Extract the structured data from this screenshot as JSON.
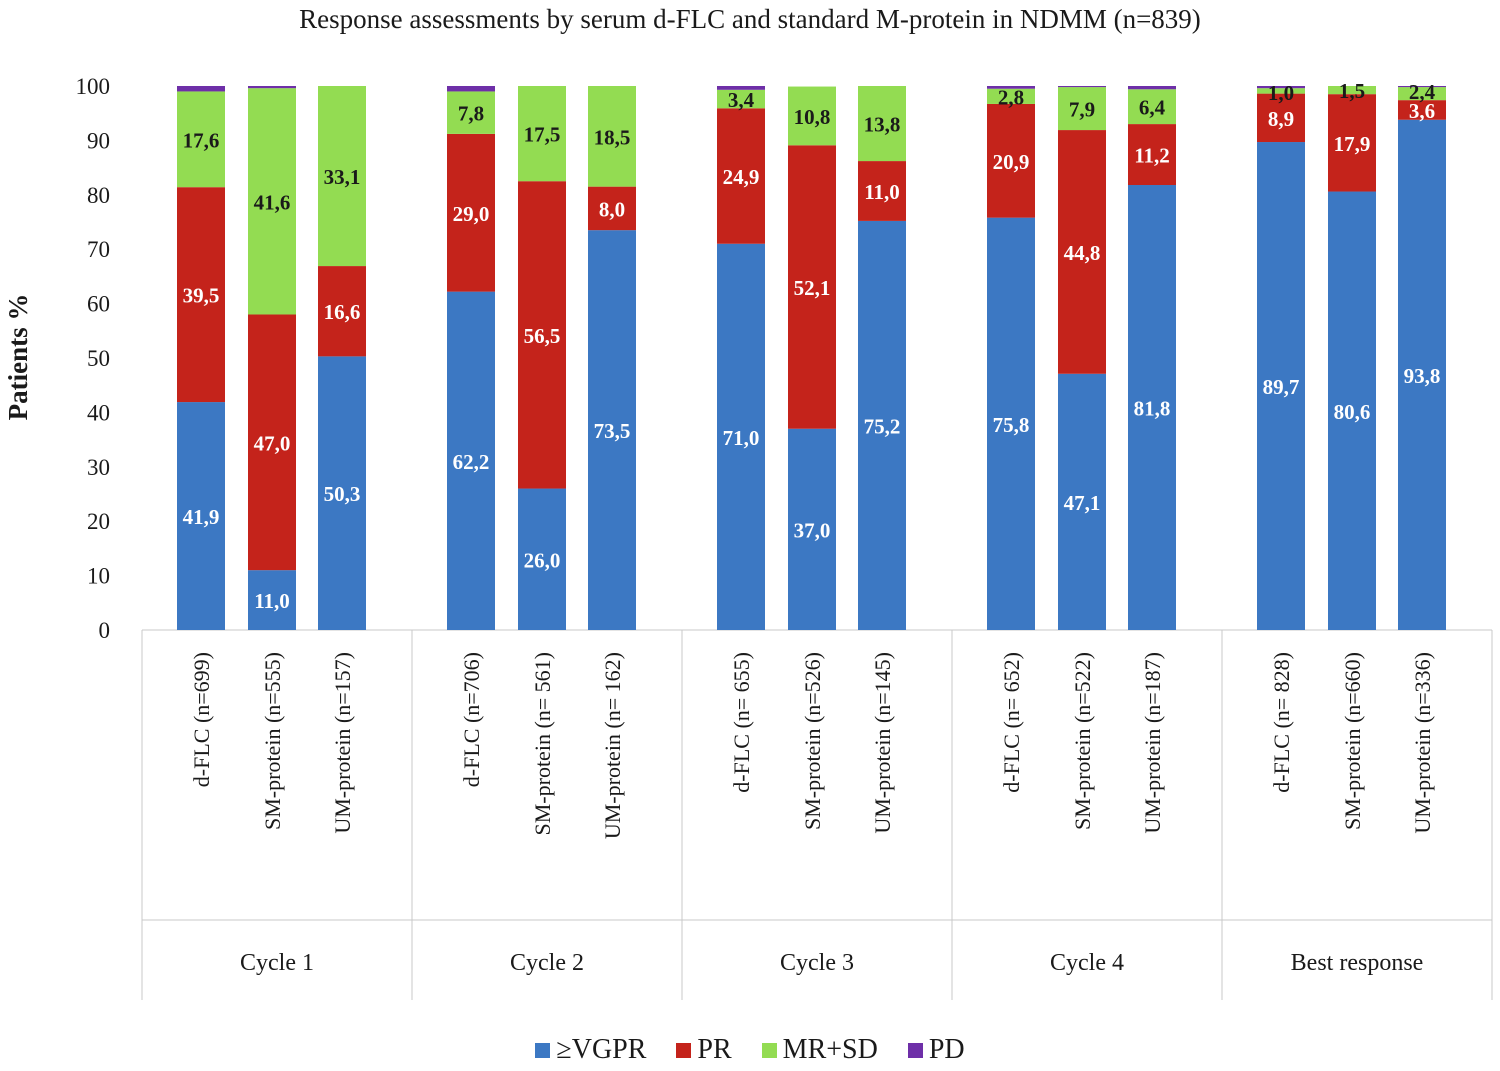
{
  "chart_data": {
    "type": "bar",
    "stacked": true,
    "title": "Response assessments by serum d-FLC and standard M-protein in NDMM (n=839)",
    "ylabel": "Patients %",
    "ylim": [
      0,
      100
    ],
    "yticks": [
      0,
      10,
      20,
      30,
      40,
      50,
      60,
      70,
      80,
      90,
      100
    ],
    "grid": false,
    "legend_position": "bottom",
    "groups": [
      "Cycle 1",
      "Cycle 2",
      "Cycle 3",
      "Cycle 4",
      "Best response"
    ],
    "categories": [
      "d-FLC (n=699)",
      "SM-protein (n=555)",
      "UM-protein (n=157)",
      "d-FLC (n=706)",
      "SM-protein (n= 561)",
      "UM-protein (n= 162)",
      "d-FLC (n= 655)",
      "SM-protein (n=526)",
      "UM-protein (n=145)",
      "d-FLC (n= 652)",
      "SM-protein (n=522)",
      "UM-protein (n=187)",
      "d-FLC (n= 828)",
      "SM-protein (n=660)",
      "UM-protein (n=336)"
    ],
    "group_index": [
      0,
      0,
      0,
      1,
      1,
      1,
      2,
      2,
      2,
      3,
      3,
      3,
      4,
      4,
      4
    ],
    "series": [
      {
        "name": "≥VGPR",
        "color": "#3c78c3",
        "label_color": "#ffffff",
        "values": [
          41.9,
          11.0,
          50.3,
          62.2,
          26.0,
          73.5,
          71.0,
          37.0,
          75.2,
          75.8,
          47.1,
          81.8,
          89.7,
          80.6,
          93.8
        ],
        "labels": [
          "41,9",
          "11,0",
          "50,3",
          "62,2",
          "26,0",
          "73,5",
          "71,0",
          "37,0",
          "75,2",
          "75,8",
          "47,1",
          "81,8",
          "89,7",
          "80,6",
          "93,8"
        ]
      },
      {
        "name": "PR",
        "color": "#c4231b",
        "label_color": "#ffffff",
        "values": [
          39.5,
          47.0,
          16.6,
          29.0,
          56.5,
          8.0,
          24.9,
          52.1,
          11.0,
          20.9,
          44.8,
          11.2,
          8.9,
          17.9,
          3.6
        ],
        "labels": [
          "39,5",
          "47,0",
          "16,6",
          "29,0",
          "56,5",
          "8,0",
          "24,9",
          "52,1",
          "11,0",
          "20,9",
          "44,8",
          "11,2",
          "8,9",
          "17,9",
          "3,6"
        ]
      },
      {
        "name": "MR+SD",
        "color": "#93dc52",
        "label_color": "#1a1a1a",
        "values": [
          17.6,
          41.6,
          33.1,
          7.8,
          17.5,
          18.5,
          3.4,
          10.8,
          13.8,
          2.8,
          7.9,
          6.4,
          1.0,
          1.5,
          2.4
        ],
        "labels": [
          "17,6",
          "41,6",
          "33,1",
          "7,8",
          "17,5",
          "18,5",
          "3,4",
          "10,8",
          "13,8",
          "2,8",
          "7,9",
          "6,4",
          "1,0",
          "1,5",
          "2,4"
        ]
      },
      {
        "name": "PD",
        "color": "#6e2fa8",
        "label_color": "#ffffff",
        "values": [
          1.0,
          0.4,
          0.0,
          1.0,
          0.0,
          0.0,
          0.7,
          0.0,
          0.0,
          0.5,
          0.2,
          0.6,
          0.4,
          0.0,
          0.2
        ],
        "labels": []
      }
    ]
  }
}
